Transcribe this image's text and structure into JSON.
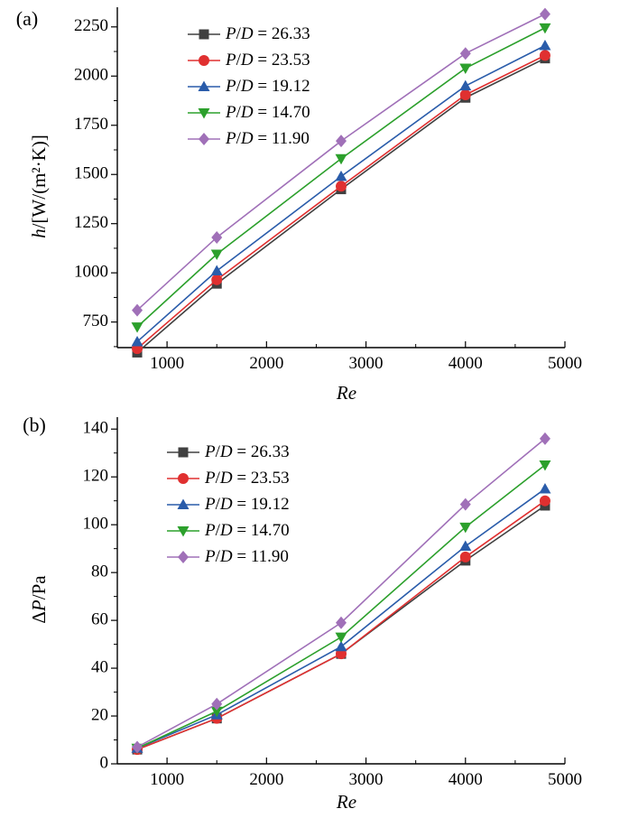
{
  "chart_data": [
    {
      "type": "line",
      "panel_label": "(a)",
      "xlabel": "Re",
      "ylabel": "h/[W/(m²·K)]",
      "xlim": [
        500,
        5000
      ],
      "ylim": [
        620,
        2350
      ],
      "xticks": [
        "1000",
        "2000",
        "3000",
        "4000",
        "5000"
      ],
      "yticks": [
        "750",
        "1000",
        "1250",
        "1500",
        "1750",
        "2000",
        "2250"
      ],
      "legend_position": "top-left",
      "x": [
        700,
        1500,
        2750,
        4000,
        4800
      ],
      "series": [
        {
          "name": "P/D = 26.33",
          "color": "#404040",
          "marker": "square",
          "values": [
            595,
            945,
            1425,
            1890,
            2090
          ]
        },
        {
          "name": "P/D = 23.53",
          "color": "#e03030",
          "marker": "circle",
          "values": [
            615,
            965,
            1440,
            1905,
            2105
          ]
        },
        {
          "name": "P/D = 19.12",
          "color": "#2a5caa",
          "marker": "triangle-up",
          "values": [
            650,
            1010,
            1490,
            1950,
            2155
          ]
        },
        {
          "name": "P/D = 14.70",
          "color": "#2ca02c",
          "marker": "triangle-down",
          "values": [
            725,
            1095,
            1580,
            2040,
            2245
          ]
        },
        {
          "name": "P/D = 11.90",
          "color": "#a070b8",
          "marker": "diamond",
          "values": [
            810,
            1180,
            1670,
            2115,
            2315
          ]
        }
      ]
    },
    {
      "type": "line",
      "panel_label": "(b)",
      "xlabel": "Re",
      "ylabel": "ΔP/Pa",
      "xlim": [
        500,
        5000
      ],
      "ylim": [
        0,
        145
      ],
      "xticks": [
        "1000",
        "2000",
        "3000",
        "4000",
        "5000"
      ],
      "yticks": [
        "0",
        "20",
        "40",
        "60",
        "80",
        "100",
        "120",
        "140"
      ],
      "legend_position": "top-left",
      "x": [
        700,
        1500,
        2750,
        4000,
        4800
      ],
      "series": [
        {
          "name": "P/D = 26.33",
          "color": "#404040",
          "marker": "square",
          "values": [
            6,
            19,
            46,
            85,
            108
          ]
        },
        {
          "name": "P/D = 23.53",
          "color": "#e03030",
          "marker": "circle",
          "values": [
            6,
            19,
            46,
            86.5,
            110
          ]
        },
        {
          "name": "P/D = 19.12",
          "color": "#2a5caa",
          "marker": "triangle-up",
          "values": [
            6.5,
            20.5,
            49,
            91,
            115
          ]
        },
        {
          "name": "P/D = 14.70",
          "color": "#2ca02c",
          "marker": "triangle-down",
          "values": [
            6.5,
            22,
            53,
            99,
            125
          ]
        },
        {
          "name": "P/D = 11.90",
          "color": "#a070b8",
          "marker": "diamond",
          "values": [
            7,
            25,
            59,
            108.5,
            136
          ]
        }
      ]
    }
  ]
}
